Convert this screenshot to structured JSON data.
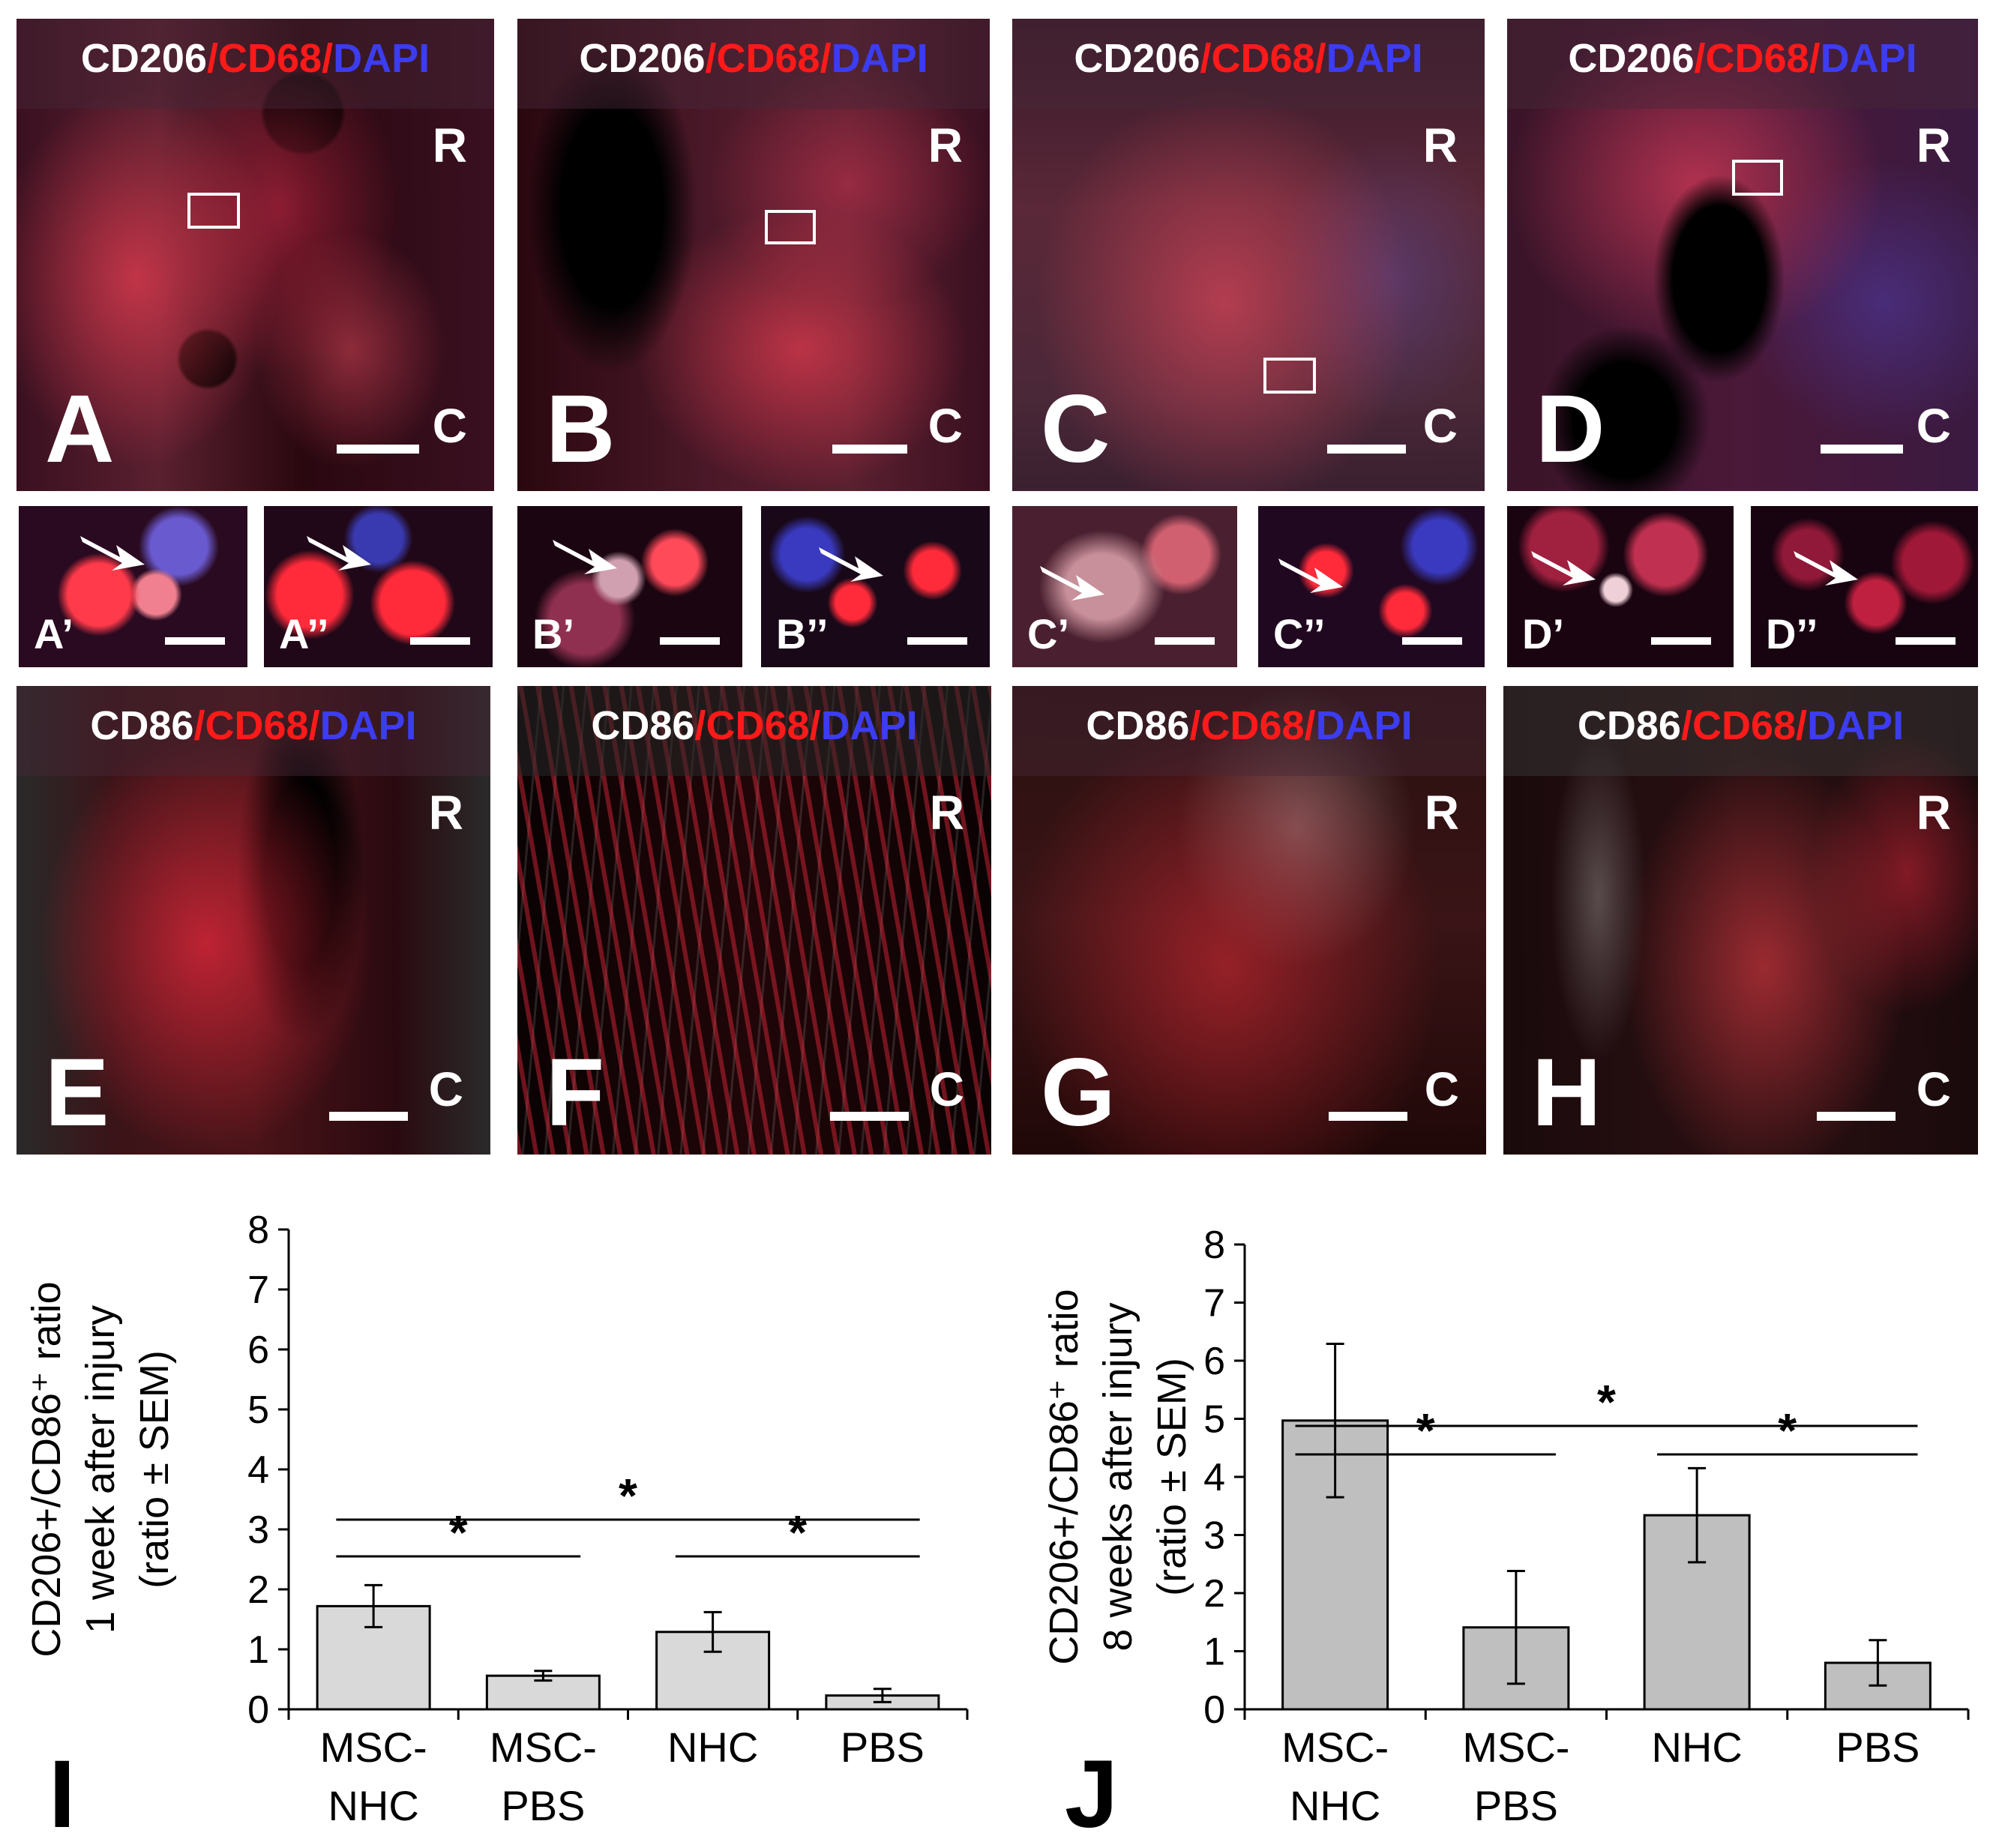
{
  "panels": [
    {
      "id": "A",
      "stain": [
        "CD206",
        "/",
        "CD68",
        "/",
        "DAPI"
      ],
      "r": "R",
      "c": "C"
    },
    {
      "id": "B",
      "stain": [
        "CD206",
        "/",
        "CD68",
        "/",
        "DAPI"
      ],
      "r": "R",
      "c": "C"
    },
    {
      "id": "C",
      "stain": [
        "CD206",
        "/",
        "CD68",
        "/",
        "DAPI"
      ],
      "r": "R",
      "c": "C"
    },
    {
      "id": "D",
      "stain": [
        "CD206",
        "/",
        "CD68",
        "/",
        "DAPI"
      ],
      "r": "R",
      "c": "C"
    },
    {
      "id": "E",
      "stain": [
        "CD86",
        "/",
        "CD68",
        "/",
        "DAPI"
      ],
      "r": "R",
      "c": "C"
    },
    {
      "id": "F",
      "stain": [
        "CD86",
        "/",
        "CD68",
        "/",
        "DAPI"
      ],
      "r": "R",
      "c": "C"
    },
    {
      "id": "G",
      "stain": [
        "CD86",
        "/",
        "CD68",
        "/",
        "DAPI"
      ],
      "r": "R",
      "c": "C"
    },
    {
      "id": "H",
      "stain": [
        "CD86",
        "/",
        "CD68",
        "/",
        "DAPI"
      ],
      "r": "R",
      "c": "C"
    }
  ],
  "insets": [
    "A’",
    "A’’",
    "B’",
    "B’’",
    "C’",
    "C’’",
    "D’",
    "D’’"
  ],
  "colors": {
    "white_stain": "#ffffff",
    "red_stain": "#ff1a1a",
    "blue_stain": "#3c3cf0",
    "bar_I": "#d9d9d9",
    "bar_J": "#bfbfbf"
  },
  "chart_data": [
    {
      "type": "bar",
      "panel_label": "I",
      "categories": [
        [
          "MSC-",
          "NHC"
        ],
        [
          "MSC-",
          "PBS"
        ],
        [
          "NHC"
        ],
        [
          "PBS"
        ]
      ],
      "values": [
        1.72,
        0.56,
        1.29,
        0.23
      ],
      "errors": [
        0.35,
        0.08,
        0.33,
        0.11
      ],
      "ylabel": [
        "CD206+/CD86⁺ ratio",
        "1 week after injury",
        "(ratio ± SEM)"
      ],
      "ylim": [
        0,
        8
      ],
      "yticks": [
        0,
        1,
        2,
        3,
        4,
        5,
        6,
        7,
        8
      ],
      "significance": [
        {
          "from": 0,
          "to": 1,
          "label": "*"
        },
        {
          "from": 2,
          "to": 3,
          "label": "*"
        },
        {
          "from": 0,
          "to": 3,
          "label": "*"
        }
      ]
    },
    {
      "type": "bar",
      "panel_label": "J",
      "categories": [
        [
          "MSC-",
          "NHC"
        ],
        [
          "MSC-",
          "PBS"
        ],
        [
          "NHC"
        ],
        [
          "PBS"
        ]
      ],
      "values": [
        4.97,
        1.41,
        3.34,
        0.8
      ],
      "errors": [
        1.32,
        0.97,
        0.81,
        0.39
      ],
      "ylabel": [
        "CD206+/CD86⁺ ratio",
        "8 weeks after injury",
        "(ratio ± SEM)"
      ],
      "ylim": [
        0,
        8
      ],
      "yticks": [
        0,
        1,
        2,
        3,
        4,
        5,
        6,
        7,
        8
      ],
      "significance": [
        {
          "from": 0,
          "to": 1,
          "label": "*"
        },
        {
          "from": 2,
          "to": 3,
          "label": "*"
        },
        {
          "from": 0,
          "to": 3,
          "label": "*"
        }
      ]
    }
  ]
}
